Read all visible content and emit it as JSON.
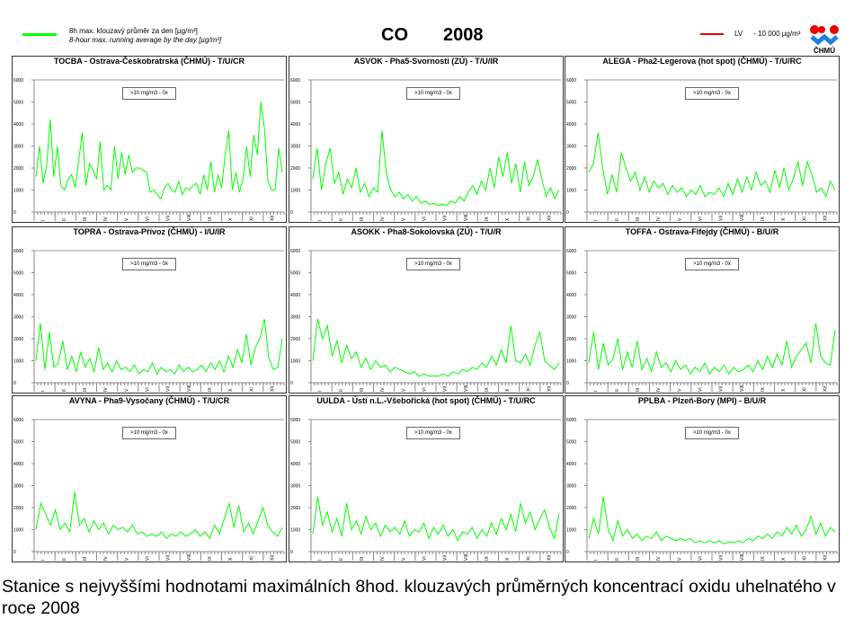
{
  "header": {
    "legend_cz": "8h max. klouzavý průměr za den [µg/m³]",
    "legend_en": "8-hour max. running average  by the day  [µg/m³]",
    "pollutant": "CO",
    "year": "2008",
    "lv_label": "LV",
    "lv_value": "- 10 000 µg/m³",
    "logo_text": "ČHMÚ",
    "series_color": "#00ff00",
    "lv_color": "#e00000"
  },
  "caption": "Stanice s nejvyššími hodnotami maximálních 8hod. klouzavých průměrných koncentrací oxidu uhelnatého v roce 2008",
  "chart_data": [
    {
      "type": "line",
      "title": "TOCBA - Ostrava-Českobratrská (ČHMÚ) - T/U/CR",
      "annotation": ">10 mg/m3 - 0x",
      "ylim": [
        0,
        6000
      ],
      "yticks": [
        "0",
        "1000",
        "2000",
        "3000",
        "4000",
        "5000",
        "6000"
      ],
      "months": [
        "I",
        "II",
        "III",
        "IV",
        "V",
        "VI",
        "VII",
        "VIII",
        "IX",
        "X",
        "XI",
        "XII"
      ],
      "values": [
        1600,
        3000,
        1300,
        2100,
        4200,
        1600,
        3000,
        1200,
        1000,
        1500,
        1700,
        1100,
        2400,
        3600,
        1200,
        2200,
        1900,
        1500,
        3200,
        1000,
        1200,
        1000,
        3000,
        1500,
        2700,
        1700,
        2600,
        1800,
        2000,
        2000,
        1900,
        1800,
        900,
        1000,
        800,
        600,
        1100,
        1300,
        1000,
        900,
        1400,
        800,
        1100,
        1000,
        1200,
        1300,
        800,
        1700,
        1000,
        2300,
        900,
        1700,
        1100,
        2600,
        3700,
        1000,
        1800,
        900,
        1500,
        3000,
        1600,
        3500,
        2600,
        5000,
        3800,
        1400,
        1000,
        1000,
        2900,
        1800
      ]
    },
    {
      "type": "line",
      "title": "ASVOK - Pha5-Svornosti (ZÚ) - T/U/IR",
      "annotation": ">10 mg/m3 - 0x",
      "ylim": [
        0,
        6000
      ],
      "yticks": [
        "0",
        "1000",
        "2000",
        "3000",
        "4000",
        "5000",
        "6000"
      ],
      "months": [
        "I",
        "II",
        "III",
        "IV",
        "V",
        "VI",
        "VII",
        "VIII",
        "IX",
        "X",
        "XI",
        "XII"
      ],
      "values": [
        1500,
        2900,
        1000,
        2200,
        2900,
        1300,
        1800,
        800,
        1500,
        1100,
        2000,
        900,
        1300,
        700,
        1100,
        900,
        3700,
        1800,
        1000,
        700,
        900,
        600,
        800,
        500,
        700,
        400,
        500,
        350,
        400,
        300,
        350,
        300,
        500,
        400,
        700,
        500,
        900,
        1200,
        800,
        1400,
        1000,
        2000,
        1100,
        2500,
        1600,
        2700,
        1300,
        2200,
        900,
        2300,
        1200,
        1600,
        2400,
        1500,
        700,
        1100,
        600,
        1000
      ]
    },
    {
      "type": "line",
      "title": "ALEGA - Pha2-Legerova (hot spot) (ČHMÚ) - T/U/RC",
      "annotation": ">10 mg/m3 - 0x",
      "ylim": [
        0,
        6000
      ],
      "yticks": [
        "0",
        "1000",
        "2000",
        "3000",
        "4000",
        "5000",
        "6000"
      ],
      "months": [
        "I",
        "II",
        "III",
        "IV",
        "V",
        "VI",
        "VII",
        "VIII",
        "IX",
        "X",
        "XI",
        "XII"
      ],
      "values": [
        1800,
        2200,
        3600,
        2000,
        800,
        1700,
        900,
        2700,
        2000,
        1400,
        1800,
        1000,
        1600,
        900,
        1400,
        1100,
        1300,
        800,
        1200,
        900,
        1100,
        700,
        1000,
        800,
        1200,
        700,
        900,
        800,
        1100,
        700,
        1300,
        800,
        1500,
        900,
        1600,
        1000,
        1800,
        1200,
        1400,
        900,
        1900,
        1100,
        2000,
        1000,
        1500,
        2300,
        1200,
        2300,
        1700,
        900,
        1100,
        700,
        1400,
        1000
      ]
    },
    {
      "type": "line",
      "title": "TOPRA - Ostrava-Přívoz (ČHMÚ) - I/U/IR",
      "annotation": ">10 mg/m3 - 0x",
      "ylim": [
        0,
        6000
      ],
      "yticks": [
        "0",
        "1000",
        "2000",
        "3000",
        "4000",
        "5000",
        "6000"
      ],
      "months": [
        "I",
        "II",
        "III",
        "IV",
        "V",
        "VI",
        "VII",
        "VIII",
        "IX",
        "X",
        "XI",
        "XII"
      ],
      "values": [
        1000,
        2700,
        600,
        2300,
        700,
        900,
        1900,
        600,
        1200,
        500,
        1400,
        700,
        1100,
        500,
        1600,
        600,
        900,
        500,
        1000,
        600,
        700,
        500,
        800,
        400,
        600,
        500,
        900,
        400,
        700,
        500,
        600,
        400,
        800,
        500,
        700,
        500,
        600,
        800,
        500,
        900,
        600,
        1000,
        500,
        1200,
        700,
        1500,
        900,
        2200,
        800,
        1600,
        2000,
        2900,
        1100,
        600,
        700,
        2000
      ]
    },
    {
      "type": "line",
      "title": "ASOKK - Pha8-Sokolovská (ZÚ) - T/U/R",
      "annotation": ">10 mg/m3 - 0x",
      "ylim": [
        0,
        6000
      ],
      "yticks": [
        "0",
        "1000",
        "2000",
        "3000",
        "4000",
        "5000",
        "6000"
      ],
      "months": [
        "I",
        "II",
        "III",
        "IV",
        "V",
        "VI",
        "VII",
        "VIII",
        "IX",
        "X",
        "XI",
        "XII"
      ],
      "values": [
        1000,
        2900,
        2000,
        2600,
        1200,
        1900,
        900,
        1700,
        1100,
        1400,
        700,
        1100,
        600,
        1000,
        700,
        800,
        500,
        700,
        600,
        500,
        400,
        500,
        300,
        400,
        300,
        300,
        300,
        400,
        300,
        500,
        400,
        600,
        500,
        700,
        600,
        900,
        700,
        1200,
        800,
        1500,
        900,
        2600,
        1000,
        900,
        1300,
        800,
        1700,
        2300,
        1000,
        800,
        600,
        900
      ]
    },
    {
      "type": "line",
      "title": "TOFFA - Ostrava-Fifejdy (ČHMÚ) - B/U/R",
      "annotation": ">10 mg/m3 - 0x",
      "ylim": [
        0,
        6000
      ],
      "yticks": [
        "0",
        "1000",
        "2000",
        "3000",
        "4000",
        "5000",
        "6000"
      ],
      "months": [
        "I",
        "II",
        "III",
        "IV",
        "V",
        "VI",
        "VII",
        "VIII",
        "IX",
        "X",
        "XI",
        "XII"
      ],
      "values": [
        900,
        2300,
        600,
        1800,
        800,
        1100,
        2000,
        600,
        1400,
        700,
        1900,
        600,
        1100,
        500,
        1400,
        700,
        900,
        500,
        1000,
        600,
        800,
        400,
        700,
        500,
        900,
        400,
        700,
        500,
        800,
        400,
        700,
        500,
        600,
        800,
        500,
        1000,
        600,
        1200,
        700,
        1300,
        800,
        1900,
        700,
        1200,
        1500,
        1800,
        900,
        2700,
        1200,
        900,
        800,
        2400
      ]
    },
    {
      "type": "line",
      "title": "AVYNA - Pha9-Vysočany (ČHMÚ) - T/U/CR",
      "annotation": ">10 mg/m3 - 0x",
      "ylim": [
        0,
        6000
      ],
      "yticks": [
        "0",
        "1000",
        "2000",
        "3000",
        "4000",
        "5000",
        "6000"
      ],
      "months": [
        "I",
        "II",
        "III",
        "IV",
        "V",
        "VI",
        "VII",
        "VIII",
        "IX",
        "X",
        "XI",
        "XII"
      ],
      "values": [
        1000,
        2200,
        1700,
        1200,
        1900,
        1000,
        1300,
        900,
        2700,
        1200,
        1500,
        900,
        1400,
        1000,
        1300,
        800,
        1200,
        1000,
        1100,
        900,
        1200,
        800,
        900,
        700,
        800,
        700,
        900,
        600,
        800,
        700,
        900,
        700,
        800,
        1000,
        700,
        900,
        600,
        1200,
        800,
        1500,
        2200,
        1100,
        2100,
        900,
        1300,
        800,
        1400,
        2000,
        1200,
        900,
        700,
        1100
      ]
    },
    {
      "type": "line",
      "title": "UULDA - Ústí n.L.-Všebořická (hot spot) (ČHMÚ) - T/U/RC",
      "annotation": ">10 mg/m3 - 0x",
      "ylim": [
        0,
        6000
      ],
      "yticks": [
        "0",
        "1000",
        "2000",
        "3000",
        "4000",
        "5000",
        "6000"
      ],
      "months": [
        "I",
        "II",
        "III",
        "IV",
        "V",
        "VI",
        "VII",
        "VIII",
        "IX",
        "X",
        "XI",
        "XII"
      ],
      "values": [
        800,
        2500,
        1200,
        1800,
        900,
        1500,
        700,
        2200,
        1000,
        1400,
        800,
        1600,
        1000,
        1300,
        700,
        1200,
        900,
        1100,
        800,
        1400,
        700,
        1000,
        900,
        1300,
        600,
        1100,
        800,
        1200,
        700,
        1000,
        500,
        900,
        800,
        1100,
        600,
        1000,
        700,
        1300,
        800,
        1500,
        1000,
        1700,
        900,
        2200,
        1300,
        1800,
        1000,
        1500,
        1900,
        1100,
        600,
        1700
      ]
    },
    {
      "type": "line",
      "title": "PPLBA - Plzeň-Bory (MPI) - B/U/R",
      "annotation": ">10 mg/m3 - 0x",
      "ylim": [
        0,
        6000
      ],
      "yticks": [
        "0",
        "1000",
        "2000",
        "3000",
        "4000",
        "5000",
        "6000"
      ],
      "months": [
        "I",
        "II",
        "III",
        "IV",
        "V",
        "VI",
        "VII",
        "VIII",
        "IX",
        "X",
        "XI",
        "XII"
      ],
      "values": [
        600,
        1500,
        800,
        2500,
        1000,
        500,
        1400,
        700,
        1000,
        600,
        800,
        500,
        700,
        600,
        900,
        500,
        700,
        600,
        500,
        600,
        500,
        600,
        400,
        500,
        400,
        500,
        400,
        500,
        350,
        450,
        400,
        500,
        400,
        600,
        500,
        700,
        600,
        800,
        600,
        900,
        700,
        1100,
        800,
        1200,
        700,
        1000,
        1600,
        800,
        1300,
        700,
        1100,
        900
      ]
    }
  ]
}
